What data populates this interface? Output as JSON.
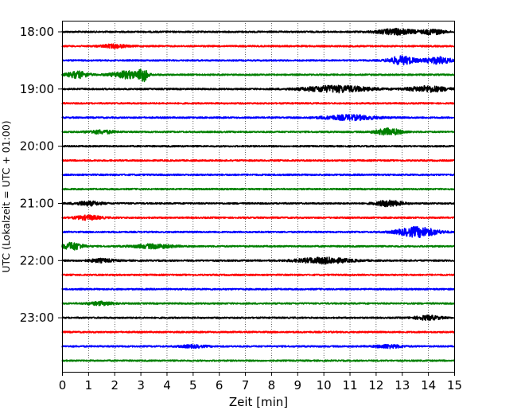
{
  "chart_data": {
    "type": "line",
    "title": "",
    "xlabel": "Zeit  [min]",
    "ylabel": "UTC (Lokalzeit = UTC + 01:00)",
    "xlim": [
      0,
      15
    ],
    "x_ticks": [
      "0",
      "1",
      "2",
      "3",
      "4",
      "5",
      "6",
      "7",
      "8",
      "9",
      "10",
      "11",
      "12",
      "13",
      "14",
      "15"
    ],
    "y_ticks": [
      "18:00",
      "19:00",
      "20:00",
      "21:00",
      "22:00",
      "23:00"
    ],
    "grid": "vertical dotted lines at each minute",
    "trace_colors": [
      "#000000",
      "#ff0000",
      "#0000ff",
      "#008000"
    ],
    "traces": [
      {
        "start": "18:00",
        "color": "#000000",
        "bursts": [
          {
            "at": 12.8,
            "width": 1.5,
            "amp": 0.35
          },
          {
            "at": 14.2,
            "width": 0.8,
            "amp": 0.3
          }
        ]
      },
      {
        "start": "18:15",
        "color": "#ff0000",
        "bursts": [
          {
            "at": 2.0,
            "width": 1.0,
            "amp": 0.2
          }
        ]
      },
      {
        "start": "18:30",
        "color": "#0000ff",
        "bursts": [
          {
            "at": 13.0,
            "width": 1.0,
            "amp": 0.5
          },
          {
            "at": 14.4,
            "width": 1.0,
            "amp": 0.4
          }
        ]
      },
      {
        "start": "18:45",
        "color": "#008000",
        "bursts": [
          {
            "at": 0.6,
            "width": 0.8,
            "amp": 0.4
          },
          {
            "at": 2.5,
            "width": 1.2,
            "amp": 0.45
          },
          {
            "at": 3.1,
            "width": 0.3,
            "amp": 0.8
          }
        ]
      },
      {
        "start": "19:00",
        "color": "#000000",
        "bursts": [
          {
            "at": 10.5,
            "width": 2.5,
            "amp": 0.4
          },
          {
            "at": 14.0,
            "width": 1.5,
            "amp": 0.35
          }
        ]
      },
      {
        "start": "19:15",
        "color": "#ff0000",
        "bursts": []
      },
      {
        "start": "19:30",
        "color": "#0000ff",
        "bursts": [
          {
            "at": 11.0,
            "width": 2.0,
            "amp": 0.3
          }
        ]
      },
      {
        "start": "19:45",
        "color": "#008000",
        "bursts": [
          {
            "at": 12.5,
            "width": 1.0,
            "amp": 0.4
          },
          {
            "at": 1.5,
            "width": 1.0,
            "amp": 0.2
          }
        ]
      },
      {
        "start": "20:00",
        "color": "#000000",
        "bursts": []
      },
      {
        "start": "20:15",
        "color": "#ff0000",
        "bursts": []
      },
      {
        "start": "20:30",
        "color": "#0000ff",
        "bursts": []
      },
      {
        "start": "20:45",
        "color": "#008000",
        "bursts": []
      },
      {
        "start": "21:00",
        "color": "#000000",
        "bursts": [
          {
            "at": 12.5,
            "width": 1.0,
            "amp": 0.35
          },
          {
            "at": 1.0,
            "width": 1.0,
            "amp": 0.25
          }
        ]
      },
      {
        "start": "21:15",
        "color": "#ff0000",
        "bursts": [
          {
            "at": 1.0,
            "width": 1.0,
            "amp": 0.25
          }
        ]
      },
      {
        "start": "21:30",
        "color": "#0000ff",
        "bursts": [
          {
            "at": 13.6,
            "width": 1.5,
            "amp": 0.6
          }
        ]
      },
      {
        "start": "21:45",
        "color": "#008000",
        "bursts": [
          {
            "at": 0.4,
            "width": 0.8,
            "amp": 0.45
          },
          {
            "at": 3.5,
            "width": 1.5,
            "amp": 0.25
          }
        ]
      },
      {
        "start": "22:00",
        "color": "#000000",
        "bursts": [
          {
            "at": 10.0,
            "width": 2.0,
            "amp": 0.35
          },
          {
            "at": 1.5,
            "width": 1.0,
            "amp": 0.2
          }
        ]
      },
      {
        "start": "22:15",
        "color": "#ff0000",
        "bursts": []
      },
      {
        "start": "22:30",
        "color": "#0000ff",
        "bursts": []
      },
      {
        "start": "22:45",
        "color": "#008000",
        "bursts": [
          {
            "at": 1.5,
            "width": 1.0,
            "amp": 0.2
          }
        ]
      },
      {
        "start": "23:00",
        "color": "#000000",
        "bursts": [
          {
            "at": 14.0,
            "width": 1.0,
            "amp": 0.25
          }
        ]
      },
      {
        "start": "23:15",
        "color": "#ff0000",
        "bursts": []
      },
      {
        "start": "23:30",
        "color": "#0000ff",
        "bursts": [
          {
            "at": 12.5,
            "width": 1.0,
            "amp": 0.2
          },
          {
            "at": 5.0,
            "width": 1.0,
            "amp": 0.15
          }
        ]
      },
      {
        "start": "23:45",
        "color": "#008000",
        "bursts": []
      }
    ]
  }
}
